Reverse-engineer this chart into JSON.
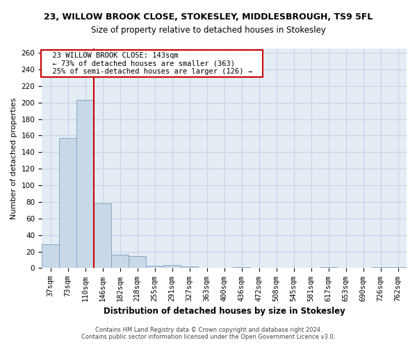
{
  "title": "23, WILLOW BROOK CLOSE, STOKESLEY, MIDDLESBROUGH, TS9 5FL",
  "subtitle": "Size of property relative to detached houses in Stokesley",
  "xlabel": "Distribution of detached houses by size in Stokesley",
  "ylabel": "Number of detached properties",
  "footer_line1": "Contains HM Land Registry data © Crown copyright and database right 2024.",
  "footer_line2": "Contains public sector information licensed under the Open Government Licence v3.0.",
  "bin_labels": [
    "37sqm",
    "73sqm",
    "110sqm",
    "146sqm",
    "182sqm",
    "218sqm",
    "255sqm",
    "291sqm",
    "327sqm",
    "363sqm",
    "400sqm",
    "436sqm",
    "472sqm",
    "508sqm",
    "545sqm",
    "581sqm",
    "617sqm",
    "653sqm",
    "690sqm",
    "726sqm",
    "762sqm"
  ],
  "bar_values": [
    29,
    157,
    203,
    78,
    16,
    15,
    3,
    4,
    2,
    0,
    0,
    1,
    0,
    0,
    0,
    0,
    1,
    0,
    0,
    1,
    1
  ],
  "bar_color": "#c8d8e8",
  "bar_edge_color": "#7a9ec0",
  "grid_color": "#c8d4e4",
  "background_color": "#e4ecf4",
  "vline_x": 2.5,
  "vline_color": "#cc0000",
  "annotation_text": "  23 WILLOW BROOK CLOSE: 143sqm  \n  ← 73% of detached houses are smaller (363)  \n  25% of semi-detached houses are larger (126) →  ",
  "annotation_box_color": "#cc0000",
  "ylim": [
    0,
    265
  ],
  "yticks": [
    0,
    20,
    40,
    60,
    80,
    100,
    120,
    140,
    160,
    180,
    200,
    220,
    240,
    260
  ],
  "title_fontsize": 9,
  "subtitle_fontsize": 8.5,
  "ylabel_fontsize": 8,
  "xlabel_fontsize": 8.5,
  "tick_fontsize": 7.5,
  "footer_fontsize": 6
}
